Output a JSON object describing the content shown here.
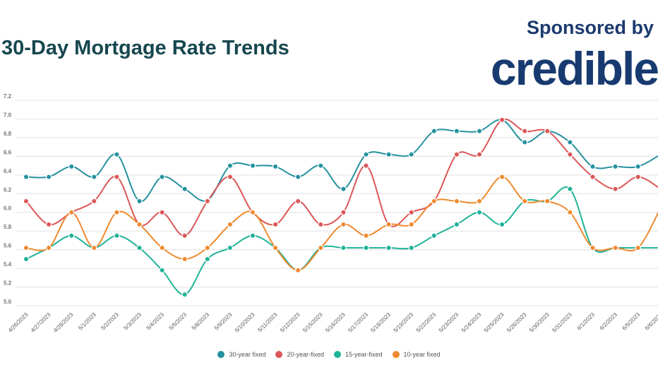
{
  "header": {
    "title": "30-Day Mortgage Rate Trends",
    "sponsor_label": "Sponsored by",
    "brand": "credible"
  },
  "chart_data": {
    "type": "line",
    "title": "30-Day Mortgage Rate Trends",
    "xlabel": "",
    "ylabel": "",
    "ylim": [
      5.0,
      7.2
    ],
    "yticks": [
      "5.0",
      "5.2",
      "5.4",
      "5.6",
      "5.8",
      "6.0",
      "6.2",
      "6.4",
      "6.6",
      "6.8",
      "7.0",
      "7.2"
    ],
    "grid": true,
    "legend_position": "bottom",
    "categories": [
      "4/26/2023",
      "4/27/2023",
      "4/28/2023",
      "5/1/2023",
      "5/2/2023",
      "5/3/2023",
      "5/4/2023",
      "5/5/2023",
      "5/8/2023",
      "5/9/2023",
      "5/10/2023",
      "5/11/2023",
      "5/12/2023",
      "5/15/2023",
      "5/16/2023",
      "5/17/2023",
      "5/18/2023",
      "5/19/2023",
      "5/22/2023",
      "5/23/2023",
      "5/24/2023",
      "5/25/2023",
      "5/26/2023",
      "5/30/2023",
      "5/31/2023",
      "6/1/2023",
      "6/2/2023",
      "6/5/2023",
      "6/6/2023"
    ],
    "series": [
      {
        "name": "30-year fixed",
        "color": "#25919f",
        "values": [
          6.38,
          6.38,
          6.49,
          6.38,
          6.62,
          6.12,
          6.38,
          6.25,
          6.13,
          6.5,
          6.5,
          6.49,
          6.38,
          6.5,
          6.25,
          6.62,
          6.62,
          6.62,
          6.87,
          6.87,
          6.87,
          6.99,
          6.75,
          6.87,
          6.75,
          6.49,
          6.49,
          6.49,
          6.62
        ]
      },
      {
        "name": "20-year-fixed",
        "color": "#dc5758",
        "values": [
          6.12,
          5.87,
          6.0,
          6.12,
          6.38,
          5.87,
          6.0,
          5.75,
          6.12,
          6.38,
          6.0,
          5.87,
          6.12,
          5.87,
          6.0,
          6.5,
          5.87,
          6.0,
          6.12,
          6.62,
          6.62,
          6.99,
          6.87,
          6.87,
          6.62,
          6.38,
          6.25,
          6.38,
          6.25
        ]
      },
      {
        "name": "15-year-fixed",
        "color": "#1fb397",
        "values": [
          5.5,
          5.62,
          5.75,
          5.62,
          5.75,
          5.62,
          5.38,
          5.12,
          5.5,
          5.62,
          5.75,
          5.62,
          5.38,
          5.62,
          5.62,
          5.62,
          5.62,
          5.62,
          5.75,
          5.87,
          6.0,
          5.87,
          6.12,
          6.12,
          6.25,
          5.62,
          5.62,
          5.62,
          5.62
        ]
      },
      {
        "name": "10-year fixed",
        "color": "#ef8a2f",
        "values": [
          5.62,
          5.62,
          6.0,
          5.62,
          6.0,
          5.87,
          5.62,
          5.5,
          5.62,
          5.87,
          6.0,
          5.62,
          5.38,
          5.62,
          5.87,
          5.75,
          5.87,
          5.87,
          6.12,
          6.12,
          6.12,
          6.38,
          6.12,
          6.12,
          6.0,
          5.62,
          5.62,
          5.62,
          6.05
        ]
      }
    ]
  }
}
